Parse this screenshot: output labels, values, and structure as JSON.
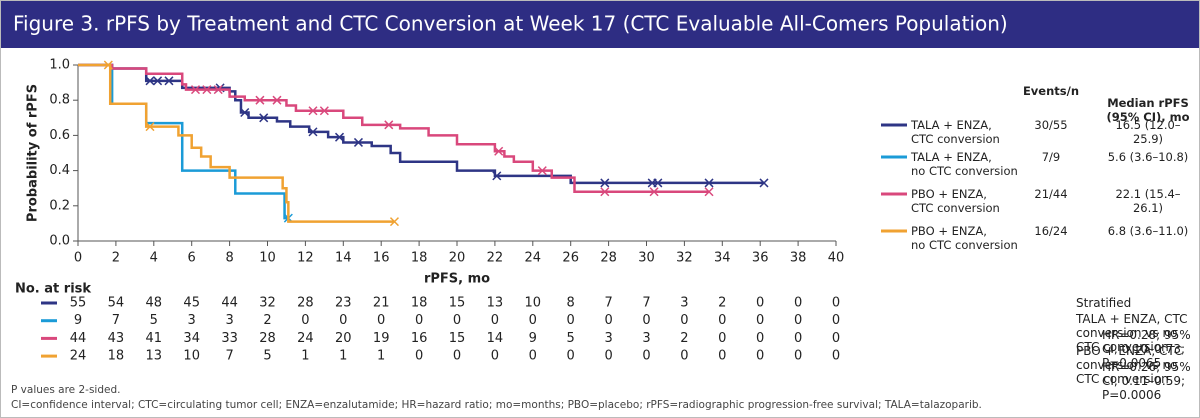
{
  "chart_data": {
    "type": "km",
    "title": "Figure 3. rPFS by Treatment and CTC Conversion at Week 17 (CTC Evaluable All-Comers Population)",
    "x_label": "rPFS, mo",
    "y_label": "Probability of rPFS",
    "xlim": [
      0,
      40
    ],
    "xticks": [
      0,
      2,
      4,
      6,
      8,
      10,
      12,
      14,
      16,
      18,
      20,
      22,
      24,
      26,
      28,
      30,
      32,
      34,
      36,
      38,
      40
    ],
    "ylim": [
      0,
      1
    ],
    "yticks": [
      {
        "value": 0,
        "label": "0.0"
      },
      0.2,
      0.4,
      0.6,
      0.8,
      {
        "value": 1,
        "label": "1.0"
      }
    ],
    "legend_headers": [
      "Events/n",
      "Median rPFS\n(95% CI), mo"
    ],
    "series": [
      {
        "name": "TALA + ENZA,\nCTC conversion",
        "color": "#2e3585",
        "events": "30/55",
        "median": "16.5 (12.0–25.9)",
        "x": [
          0,
          1.8,
          3.6,
          5.5,
          8,
          8.3,
          8.6,
          9,
          10.5,
          11.2,
          12.2,
          13.2,
          14,
          15.5,
          16.5,
          17,
          20,
          22,
          26,
          36.2
        ],
        "values": [
          1,
          0.98,
          0.91,
          0.87,
          0.85,
          0.8,
          0.73,
          0.7,
          0.68,
          0.65,
          0.62,
          0.59,
          0.56,
          0.54,
          0.5,
          0.45,
          0.4,
          0.37,
          0.33,
          0.33
        ],
        "censored_x": [
          3.8,
          4.2,
          4.8,
          7.5,
          8.8,
          9.8,
          12.4,
          13.8,
          14.8,
          22.1,
          27.8,
          30.3,
          30.6,
          33.3,
          36.2
        ],
        "at_risk": [
          55,
          54,
          48,
          45,
          44,
          32,
          28,
          23,
          21,
          18,
          15,
          13,
          10,
          8,
          7,
          7,
          3,
          2,
          0,
          0,
          0
        ]
      },
      {
        "name": "TALA + ENZA,\nno CTC conversion",
        "color": "#1b9bd7",
        "events": "7/9",
        "median": "5.6 (3.6–10.8)",
        "x": [
          0,
          1.8,
          3.6,
          5.5,
          8.3,
          10.9,
          11.1
        ],
        "values": [
          1,
          0.78,
          0.67,
          0.4,
          0.27,
          0.13,
          0.13
        ],
        "censored_x": [
          11.1
        ],
        "at_risk": [
          9,
          7,
          5,
          3,
          3,
          2,
          0,
          0,
          0,
          0,
          0,
          0,
          0,
          0,
          0,
          0,
          0,
          0,
          0,
          0,
          0
        ]
      },
      {
        "name": "PBO + ENZA,\nCTC conversion",
        "color": "#d9487c",
        "events": "21/44",
        "median": "22.1 (15.4–26.1)",
        "x": [
          0,
          1.8,
          3.6,
          5.5,
          5.7,
          8,
          8.8,
          11,
          11.5,
          14,
          15,
          17,
          18.5,
          20,
          22,
          22.5,
          23,
          24,
          25,
          26.2,
          33.3
        ],
        "values": [
          1,
          0.98,
          0.95,
          0.89,
          0.86,
          0.82,
          0.8,
          0.77,
          0.74,
          0.7,
          0.66,
          0.64,
          0.6,
          0.55,
          0.51,
          0.48,
          0.45,
          0.4,
          0.36,
          0.28,
          0.28
        ],
        "censored_x": [
          6.2,
          6.8,
          7.4,
          9.6,
          10.5,
          12.4,
          13.0,
          16.4,
          22.2,
          24.5,
          27.8,
          30.4,
          33.3
        ],
        "at_risk": [
          44,
          43,
          41,
          34,
          33,
          28,
          24,
          20,
          19,
          16,
          15,
          14,
          9,
          5,
          3,
          3,
          2,
          0,
          0,
          0,
          0
        ]
      },
      {
        "name": "PBO + ENZA,\nno CTC conversion",
        "color": "#f0a232",
        "events": "16/24",
        "median": "6.8 (3.6–11.0)",
        "x": [
          0,
          1.7,
          3.6,
          5.3,
          6,
          6.5,
          7,
          8,
          10.8,
          11,
          11.1,
          16.7
        ],
        "values": [
          1,
          0.78,
          0.65,
          0.6,
          0.53,
          0.48,
          0.42,
          0.36,
          0.3,
          0.22,
          0.11,
          0.11
        ],
        "censored_x": [
          1.6,
          3.8,
          16.7
        ],
        "at_risk": [
          24,
          18,
          13,
          10,
          7,
          5,
          1,
          1,
          1,
          0,
          0,
          0,
          0,
          0,
          0,
          0,
          0,
          0,
          0,
          0,
          0
        ]
      }
    ],
    "at_risk_title": "No. at risk",
    "stats": [
      "Stratified",
      "TALA + ENZA, CTC conversion vs no CTC conversion",
      "HR=0.28; 95% CI, 0.10–0.73; P=0.0065",
      "PBO + ENZA, CTC conversion vs no CTC conversion",
      "HR=0.26; 95% CI, 0.11–0.59; P=0.0006"
    ],
    "footnotes": [
      "P values are 2-sided.",
      "CI=confidence interval; CTC=circulating tumor cell; ENZA=enzalutamide; HR=hazard ratio; mo=months; PBO=placebo; rPFS=radiographic progression-free survival; TALA=talazoparib."
    ]
  }
}
